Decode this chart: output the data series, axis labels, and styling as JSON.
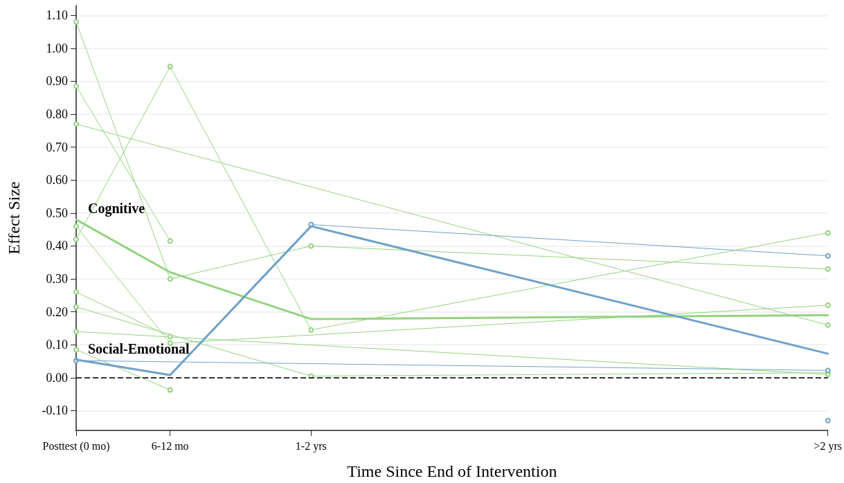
{
  "chart_data": {
    "type": "line",
    "xlabel": "Time Since End of Intervention",
    "ylabel": "Effect Size",
    "categories": [
      "Posttest (0 mo)",
      null,
      "6-12 mo",
      null,
      null,
      "1-2 yrs",
      null,
      null,
      null,
      null,
      null,
      null,
      null,
      null,
      null,
      null,
      ">2 yrs"
    ],
    "ylim": [
      -0.16,
      1.13
    ],
    "yticks": [
      {
        "value": -0.1,
        "label": "-0.10"
      },
      {
        "value": 0,
        "label": "0.00"
      },
      {
        "value": 0.1,
        "label": "0.10"
      },
      {
        "value": 0.2,
        "label": "0.20"
      },
      {
        "value": 0.3,
        "label": "0.30"
      },
      {
        "value": 0.4,
        "label": "0.40"
      },
      {
        "value": 0.5,
        "label": "0.50"
      },
      {
        "value": 0.6,
        "label": "0.60"
      },
      {
        "value": 0.7,
        "label": "0.70"
      },
      {
        "value": 0.8,
        "label": "0.80"
      },
      {
        "value": 0.9,
        "label": "0.90"
      },
      {
        "value": 1.0,
        "label": "1.00"
      },
      {
        "value": 1.1,
        "label": "1.10"
      }
    ],
    "grid": "y",
    "legend": false,
    "line_style": "solid",
    "ref_lines": [
      {
        "axis": "y",
        "value": 0,
        "color": "#333333",
        "line_style": "dashed"
      }
    ],
    "series": [
      {
        "color": "#93d27f",
        "marker": "circle",
        "x": [
          "Posttest (0 mo)",
          "6-12 mo",
          "1-2 yrs",
          ">2 yrs"
        ],
        "values": [
          1.08,
          0.3,
          0.4,
          0.33
        ]
      },
      {
        "color": "#93d27f",
        "marker": "circle",
        "x": [
          "Posttest (0 mo)",
          "6-12 mo"
        ],
        "values": [
          0.885,
          0.415
        ]
      },
      {
        "color": "#93d27f",
        "marker": "circle",
        "x": [
          "Posttest (0 mo)",
          ">2 yrs"
        ],
        "values": [
          0.77,
          0.16
        ]
      },
      {
        "color": "#93d27f",
        "marker": "circle",
        "x": [
          "Posttest (0 mo)",
          "6-12 mo",
          "1-2 yrs",
          ">2 yrs"
        ],
        "values": [
          0.42,
          0.945,
          0.145,
          0.44
        ]
      },
      {
        "color": "#93d27f",
        "marker": "circle",
        "x": [
          "Posttest (0 mo)",
          "6-12 mo",
          ">2 yrs"
        ],
        "values": [
          0.46,
          0.105,
          0.22
        ]
      },
      {
        "color": "#93d27f",
        "marker": "circle",
        "x": [
          "Posttest (0 mo)",
          "6-12 mo"
        ],
        "values": [
          0.26,
          0.125
        ]
      },
      {
        "color": "#93d27f",
        "marker": "circle",
        "x": [
          "Posttest (0 mo)",
          "1-2 yrs",
          ">2 yrs"
        ],
        "values": [
          0.215,
          0.005,
          0.015
        ]
      },
      {
        "color": "#93d27f",
        "marker": "circle",
        "x": [
          "Posttest (0 mo)",
          ">2 yrs"
        ],
        "values": [
          0.14,
          0.01
        ]
      },
      {
        "color": "#93d27f",
        "marker": "circle",
        "x": [
          "Posttest (0 mo)",
          "6-12 mo"
        ],
        "values": [
          0.085,
          -0.037
        ]
      },
      {
        "color": "#6fa1c9",
        "marker": "circle",
        "x": [
          "Posttest (0 mo)",
          ">2 yrs"
        ],
        "values": [
          0.052,
          0.022
        ]
      },
      {
        "color": "#6fa1c9",
        "marker": "circle",
        "x": [
          "1-2 yrs",
          ">2 yrs"
        ],
        "values": [
          0.465,
          0.37
        ]
      },
      {
        "color": "#6fa1c9",
        "marker": "circle",
        "x": [
          ">2 yrs"
        ],
        "values": [
          -0.13
        ]
      },
      {
        "name": "Cognitive",
        "color": "#93d27f",
        "marker": "none",
        "x": [
          "Posttest (0 mo)",
          "6-12 mo",
          "1-2 yrs",
          ">2 yrs"
        ],
        "values": [
          0.48,
          0.32,
          0.178,
          0.19
        ]
      },
      {
        "name": "Social-Emotional",
        "color": "#6fa1c9",
        "marker": "none",
        "x": [
          "Posttest (0 mo)",
          "6-12 mo",
          "1-2 yrs",
          ">2 yrs"
        ],
        "values": [
          0.055,
          0.008,
          0.46,
          0.073
        ]
      }
    ]
  }
}
